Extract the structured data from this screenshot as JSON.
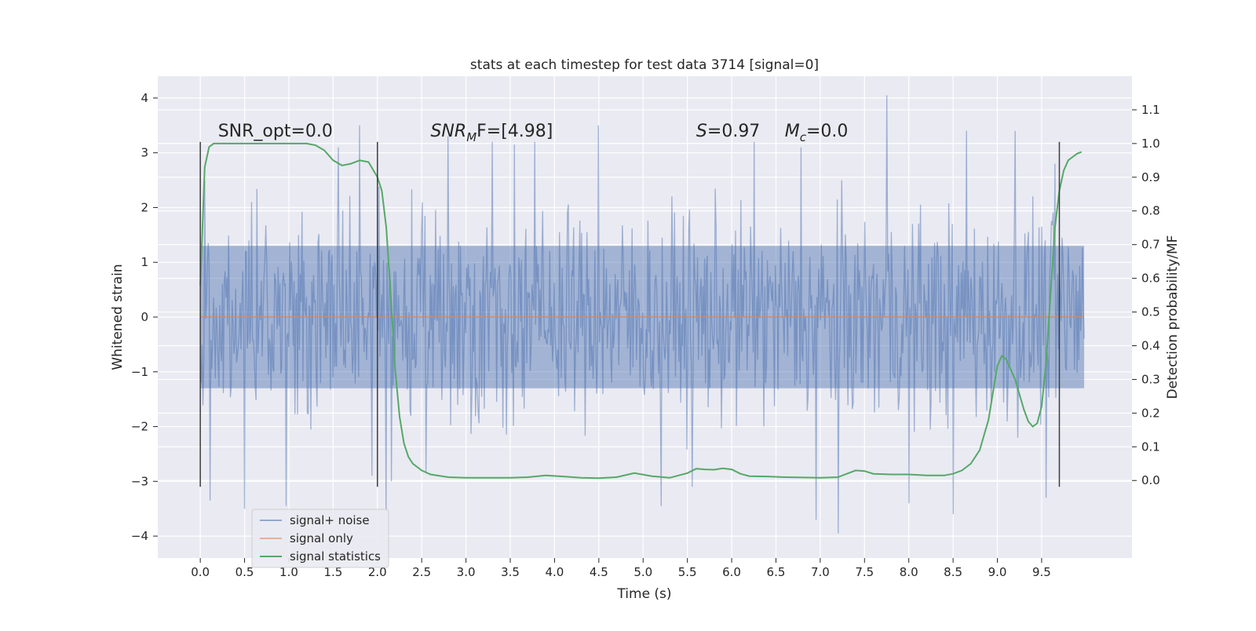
{
  "chart_data": {
    "type": "line",
    "title": "stats at each timestep for test data 3714 [signal=0]",
    "xlabel": "Time (s)",
    "ylabel": "Whitened strain",
    "ylabel_right": "Detection probability/MF",
    "xlim": [
      -0.48,
      10.52
    ],
    "ylim": [
      -4.4,
      4.4
    ],
    "ylim_right": [
      -0.23,
      1.2
    ],
    "x_ticks": [
      0.0,
      0.5,
      1.0,
      1.5,
      2.0,
      2.5,
      3.0,
      3.5,
      4.0,
      4.5,
      5.0,
      5.5,
      6.0,
      6.5,
      7.0,
      7.5,
      8.0,
      8.5,
      9.0,
      9.5
    ],
    "x_tick_labels": [
      "0.0",
      "0.5",
      "1.0",
      "1.5",
      "2.0",
      "2.5",
      "3.0",
      "3.5",
      "4.0",
      "4.5",
      "5.0",
      "5.5",
      "6.0",
      "6.5",
      "7.0",
      "7.5",
      "8.0",
      "8.5",
      "9.0",
      "9.5"
    ],
    "y_ticks": [
      -4,
      -3,
      -2,
      -1,
      0,
      1,
      2,
      3,
      4
    ],
    "y_tick_labels": [
      "−4",
      "−3",
      "−2",
      "−1",
      "0",
      "1",
      "2",
      "3",
      "4"
    ],
    "y_ticks_right": [
      0.0,
      0.1,
      0.2,
      0.3,
      0.4,
      0.5,
      0.6,
      0.7,
      0.8,
      0.9,
      1.0,
      1.1
    ],
    "y_tick_labels_right": [
      "0.0",
      "0.1",
      "0.2",
      "0.3",
      "0.4",
      "0.5",
      "0.6",
      "0.7",
      "0.8",
      "0.9",
      "1.0",
      "1.1"
    ],
    "grid": true,
    "legend_position": "bottom-left",
    "colors": {
      "background": "#eaeaf2",
      "grid": "#ffffff",
      "signal_noise": "#4c72b0",
      "signal_only": "#dd8452",
      "signal_statistics": "#55a868",
      "vline": "#3c3c3c"
    },
    "vertical_lines": [
      0.0,
      2.0,
      9.7
    ],
    "vertical_line_range": [
      -3.1,
      3.2
    ],
    "annotations": [
      {
        "id": "snr_opt",
        "text": "SNR_opt=0.0",
        "x": 0.2,
        "y": 3.3
      },
      {
        "id": "snr_mf",
        "text": "SNR",
        "sub": "M",
        "rest": "F=[4.98]",
        "x": 2.6,
        "y": 3.3
      },
      {
        "id": "s",
        "text": "S",
        "rest": "=0.97",
        "x": 5.6,
        "y": 3.3
      },
      {
        "id": "mc",
        "text": "M",
        "sub": "c",
        "rest": "=0.0",
        "x": 6.6,
        "y": 3.3
      }
    ],
    "noise_summary": {
      "x_range": [
        0.0,
        9.98
      ],
      "typical_low": -1.3,
      "typical_high": 1.3,
      "sample_count": 1000
    },
    "noise_peaks": [
      {
        "x": 0.05,
        "y": 2.5
      },
      {
        "x": 0.11,
        "y": -3.35
      },
      {
        "x": 0.5,
        "y": -3.5
      },
      {
        "x": 0.97,
        "y": -3.45
      },
      {
        "x": 1.56,
        "y": 3.1
      },
      {
        "x": 1.8,
        "y": 3.5
      },
      {
        "x": 1.94,
        "y": -2.9
      },
      {
        "x": 2.1,
        "y": -3.55
      },
      {
        "x": 2.16,
        "y": -3.0
      },
      {
        "x": 2.55,
        "y": -2.85
      },
      {
        "x": 2.8,
        "y": 3.3
      },
      {
        "x": 3.3,
        "y": 3.2
      },
      {
        "x": 3.55,
        "y": 3.15
      },
      {
        "x": 3.78,
        "y": 3.2
      },
      {
        "x": 4.5,
        "y": 3.5
      },
      {
        "x": 5.2,
        "y": -3.45
      },
      {
        "x": 5.55,
        "y": -3.1
      },
      {
        "x": 6.25,
        "y": 3.2
      },
      {
        "x": 6.78,
        "y": 3.1
      },
      {
        "x": 6.95,
        "y": -3.7
      },
      {
        "x": 7.2,
        "y": -3.95
      },
      {
        "x": 7.75,
        "y": 4.05
      },
      {
        "x": 8.0,
        "y": -3.4
      },
      {
        "x": 8.5,
        "y": -3.6
      },
      {
        "x": 8.65,
        "y": 3.4
      },
      {
        "x": 9.2,
        "y": 3.4
      },
      {
        "x": 9.55,
        "y": -3.3
      },
      {
        "x": 9.65,
        "y": 2.8
      }
    ],
    "series": [
      {
        "name": "signal+ noise",
        "kind": "noise",
        "color": "#4c72b0"
      },
      {
        "name": "signal only",
        "kind": "line",
        "color": "#dd8452",
        "x": [
          0.0,
          9.98
        ],
        "y": [
          0.0,
          0.0
        ]
      },
      {
        "name": "signal statistics",
        "kind": "line",
        "axis": "right",
        "color": "#55a868",
        "x": [
          0.0,
          0.05,
          0.1,
          0.15,
          0.2,
          0.3,
          0.5,
          0.8,
          1.0,
          1.2,
          1.3,
          1.4,
          1.5,
          1.6,
          1.7,
          1.8,
          1.9,
          2.0,
          2.05,
          2.1,
          2.15,
          2.2,
          2.25,
          2.3,
          2.35,
          2.4,
          2.5,
          2.6,
          2.8,
          3.0,
          3.2,
          3.5,
          3.7,
          3.9,
          4.1,
          4.3,
          4.5,
          4.7,
          4.9,
          5.1,
          5.3,
          5.5,
          5.6,
          5.7,
          5.8,
          5.9,
          6.0,
          6.1,
          6.2,
          6.4,
          6.6,
          6.8,
          7.0,
          7.2,
          7.3,
          7.4,
          7.5,
          7.6,
          7.8,
          8.0,
          8.2,
          8.4,
          8.5,
          8.6,
          8.7,
          8.8,
          8.9,
          9.0,
          9.05,
          9.1,
          9.2,
          9.3,
          9.35,
          9.4,
          9.45,
          9.5,
          9.55,
          9.6,
          9.65,
          9.7,
          9.75,
          9.8,
          9.85,
          9.9,
          9.95
        ],
        "y": [
          0.58,
          0.93,
          0.99,
          1.0,
          1.0,
          1.0,
          1.0,
          1.0,
          1.0,
          1.0,
          0.995,
          0.98,
          0.95,
          0.935,
          0.94,
          0.95,
          0.945,
          0.9,
          0.86,
          0.75,
          0.55,
          0.33,
          0.19,
          0.11,
          0.07,
          0.05,
          0.03,
          0.018,
          0.01,
          0.008,
          0.008,
          0.008,
          0.01,
          0.015,
          0.012,
          0.008,
          0.007,
          0.01,
          0.022,
          0.013,
          0.008,
          0.022,
          0.035,
          0.033,
          0.032,
          0.036,
          0.033,
          0.02,
          0.013,
          0.012,
          0.01,
          0.009,
          0.008,
          0.01,
          0.02,
          0.03,
          0.028,
          0.02,
          0.018,
          0.018,
          0.015,
          0.015,
          0.02,
          0.03,
          0.05,
          0.09,
          0.18,
          0.34,
          0.37,
          0.36,
          0.3,
          0.21,
          0.175,
          0.16,
          0.17,
          0.22,
          0.35,
          0.55,
          0.75,
          0.86,
          0.92,
          0.95,
          0.96,
          0.97,
          0.975
        ]
      }
    ]
  }
}
